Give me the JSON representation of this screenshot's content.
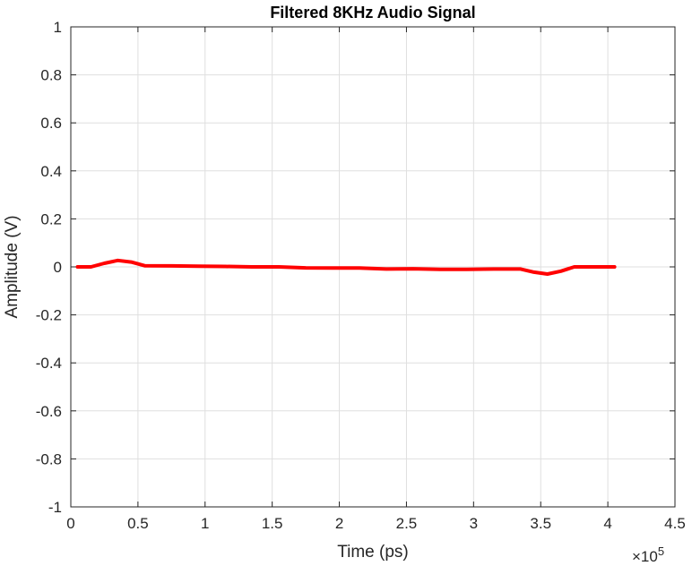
{
  "chart_data": {
    "type": "line",
    "title": "Filtered 8KHz Audio Signal",
    "xlabel": "Time (ps)",
    "ylabel": "Amplitude (V)",
    "x_exponent_label": "×10",
    "x_exponent_power": "5",
    "xlim": [
      0,
      450000
    ],
    "ylim": [
      -1,
      1
    ],
    "x_ticks": [
      0,
      50000,
      100000,
      150000,
      200000,
      250000,
      300000,
      350000,
      400000,
      450000
    ],
    "x_tick_labels": [
      "0",
      "0.5",
      "1",
      "1.5",
      "2",
      "2.5",
      "3",
      "3.5",
      "4",
      "4.5"
    ],
    "y_ticks": [
      -1,
      -0.8,
      -0.6,
      -0.4,
      -0.2,
      0,
      0.2,
      0.4,
      0.6,
      0.8,
      1
    ],
    "y_tick_labels": [
      "-1",
      "-0.8",
      "-0.6",
      "-0.4",
      "-0.2",
      "0",
      "0.2",
      "0.4",
      "0.6",
      "0.8",
      "1"
    ],
    "grid": true,
    "line_color": "#ff0000",
    "series": [
      {
        "x": [
          5000,
          15000,
          25000,
          35000,
          45000,
          55000,
          75000,
          95000,
          115000,
          135000,
          155000,
          175000,
          195000,
          215000,
          235000,
          255000,
          275000,
          295000,
          315000,
          335000,
          345000,
          355000,
          365000,
          375000,
          385000,
          395000,
          405000
        ],
        "y": [
          0,
          0,
          0.015,
          0.027,
          0.02,
          0.005,
          0.004,
          0.003,
          0.002,
          0,
          0,
          -0.004,
          -0.005,
          -0.005,
          -0.009,
          -0.008,
          -0.01,
          -0.01,
          -0.009,
          -0.009,
          -0.022,
          -0.03,
          -0.018,
          0,
          0,
          0,
          0
        ]
      }
    ]
  }
}
